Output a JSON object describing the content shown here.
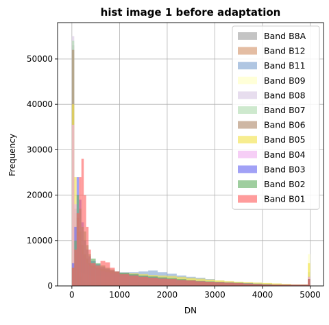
{
  "chart_data": {
    "type": "histogram",
    "title": "hist image 1 before adaptation",
    "xlabel": "DN",
    "ylabel": "Frequency",
    "xlim": [
      -300,
      5280
    ],
    "ylim": [
      0,
      58000
    ],
    "xticks": [
      0,
      1000,
      2000,
      3000,
      4000,
      5000
    ],
    "yticks": [
      0,
      10000,
      20000,
      30000,
      40000,
      50000
    ],
    "grid": true,
    "legend_position": "top-right",
    "bin_edges": [
      0,
      50,
      100,
      150,
      200,
      250,
      300,
      350,
      400,
      500,
      600,
      700,
      800,
      900,
      1000,
      1200,
      1400,
      1600,
      1800,
      2000,
      2200,
      2400,
      2600,
      2800,
      3000,
      3200,
      3400,
      3600,
      3800,
      4000,
      4200,
      4400,
      4600,
      4800,
      4950,
      5000
    ],
    "series": [
      {
        "name": "Band B8A",
        "color": "#a0a0a0",
        "values": [
          53000,
          15000,
          3000,
          1500,
          1000,
          900,
          800,
          800,
          700,
          700,
          600,
          600,
          600,
          600,
          600,
          700,
          700,
          800,
          800,
          800,
          700,
          700,
          700,
          600,
          600,
          500,
          500,
          400,
          400,
          300,
          300,
          300,
          300,
          300,
          2000
        ]
      },
      {
        "name": "Band B12",
        "color": "#d4946a",
        "values": [
          7000,
          9000,
          12000,
          9000,
          7000,
          6000,
          5000,
          4500,
          4000,
          3600,
          3200,
          2900,
          2600,
          2400,
          2200,
          2000,
          1900,
          1800,
          1700,
          1600,
          1500,
          1400,
          1300,
          1200,
          1100,
          1000,
          900,
          800,
          700,
          600,
          500,
          400,
          300,
          300,
          1500
        ]
      },
      {
        "name": "Band B11",
        "color": "#7fa3d1",
        "values": [
          5000,
          7000,
          10000,
          9000,
          8000,
          7000,
          6000,
          5000,
          4500,
          4000,
          3800,
          3600,
          3400,
          3200,
          3000,
          3000,
          3200,
          3400,
          3000,
          2700,
          2300,
          2000,
          1800,
          1500,
          1200,
          1000,
          900,
          800,
          700,
          600,
          500,
          400,
          300,
          300,
          3000
        ]
      },
      {
        "name": "Band B09",
        "color": "#ffffc0",
        "values": [
          5000,
          4000,
          3500,
          3000,
          2800,
          2600,
          2500,
          2400,
          2300,
          2200,
          2100,
          2000,
          2000,
          2000,
          2000,
          2000,
          1900,
          1900,
          1800,
          1700,
          1600,
          1500,
          1400,
          1300,
          1200,
          1100,
          1000,
          900,
          800,
          700,
          600,
          500,
          400,
          400,
          7000
        ]
      },
      {
        "name": "Band B08",
        "color": "#d8c8e4",
        "values": [
          55000,
          14000,
          3000,
          1500,
          1000,
          900,
          800,
          800,
          700,
          700,
          600,
          600,
          600,
          600,
          600,
          700,
          700,
          800,
          800,
          800,
          700,
          700,
          700,
          600,
          600,
          500,
          500,
          400,
          400,
          300,
          300,
          300,
          300,
          300,
          1800
        ]
      },
      {
        "name": "Band B07",
        "color": "#b0dcb0",
        "values": [
          54000,
          16000,
          3500,
          1500,
          1000,
          900,
          800,
          800,
          700,
          700,
          600,
          600,
          600,
          600,
          600,
          700,
          700,
          800,
          800,
          800,
          1000,
          1100,
          1100,
          1000,
          900,
          800,
          700,
          600,
          500,
          400,
          300,
          300,
          300,
          300,
          1800
        ]
      },
      {
        "name": "Band B06",
        "color": "#b08a6c",
        "values": [
          52000,
          17000,
          4000,
          2000,
          1200,
          1000,
          900,
          900,
          800,
          800,
          700,
          700,
          700,
          700,
          700,
          800,
          800,
          900,
          900,
          900,
          800,
          800,
          700,
          700,
          600,
          500,
          500,
          400,
          400,
          300,
          300,
          300,
          300,
          300,
          2000
        ]
      },
      {
        "name": "Band B05",
        "color": "#f2e24a",
        "values": [
          40000,
          24000,
          15000,
          12000,
          9000,
          7000,
          6000,
          5000,
          4500,
          4000,
          3800,
          3500,
          3300,
          3100,
          2900,
          2800,
          2600,
          2400,
          2300,
          2200,
          2000,
          1800,
          1600,
          1400,
          1200,
          1000,
          900,
          800,
          700,
          600,
          500,
          400,
          300,
          300,
          5000
        ]
      },
      {
        "name": "Band B04",
        "color": "#f0b0f0",
        "values": [
          35500,
          18000,
          11000,
          9000,
          7000,
          6000,
          5000,
          4500,
          4000,
          3600,
          3300,
          3000,
          2800,
          2600,
          2400,
          2200,
          2000,
          1800,
          1600,
          1400,
          1300,
          1200,
          1100,
          1000,
          900,
          800,
          700,
          600,
          500,
          400,
          300,
          300,
          300,
          300,
          2000
        ]
      },
      {
        "name": "Band B03",
        "color": "#6868f0",
        "values": [
          5000,
          13000,
          24000,
          19000,
          14000,
          10000,
          8000,
          6500,
          5500,
          4800,
          4200,
          3800,
          3400,
          3100,
          2800,
          2500,
          2200,
          2000,
          1800,
          1600,
          1400,
          1200,
          1000,
          900,
          800,
          700,
          600,
          500,
          400,
          300,
          300,
          300,
          300,
          300,
          1500
        ]
      },
      {
        "name": "Band B02",
        "color": "#64b064",
        "values": [
          4000,
          10000,
          20000,
          17000,
          13000,
          12000,
          9000,
          7000,
          6000,
          5000,
          4500,
          4000,
          3600,
          3200,
          2900,
          2600,
          2300,
          2100,
          1900,
          1700,
          1500,
          1300,
          1100,
          1000,
          900,
          800,
          700,
          600,
          500,
          400,
          300,
          300,
          300,
          300,
          1500
        ]
      },
      {
        "name": "Band B01",
        "color": "#ff6060",
        "values": [
          4000,
          8000,
          16000,
          24000,
          28000,
          20000,
          13000,
          8000,
          5000,
          4500,
          5500,
          5200,
          4000,
          3200,
          2600,
          2300,
          2000,
          1800,
          1600,
          1500,
          1300,
          1200,
          1000,
          900,
          800,
          700,
          600,
          500,
          400,
          300,
          300,
          300,
          300,
          300,
          1500
        ]
      }
    ]
  }
}
